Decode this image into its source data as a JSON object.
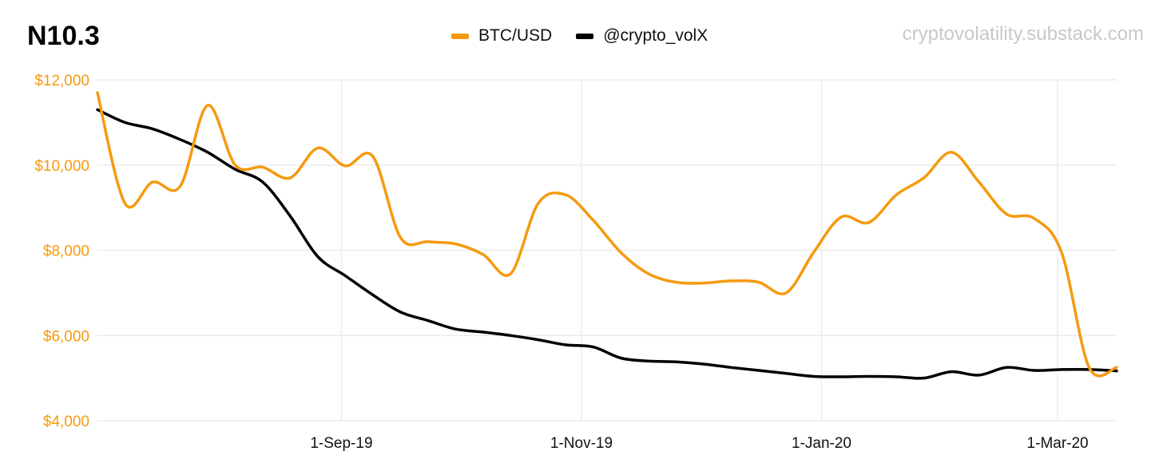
{
  "header": {
    "title": "N10.3",
    "watermark": "cryptovolatility.substack.com"
  },
  "colors": {
    "btc": "#f59a0f",
    "volx": "#000000",
    "grid": "#ececec",
    "ytick": "#f59a0f"
  },
  "chart_data": {
    "type": "line",
    "title": "N10.3",
    "xlabel": "",
    "ylabel": "",
    "ylim": [
      4000,
      12000
    ],
    "xlim": [
      "2019-07-01",
      "2020-03-16"
    ],
    "grid": true,
    "legend_position": "top-center",
    "y_ticks": [
      {
        "value": 4000,
        "label": "$4,000"
      },
      {
        "value": 6000,
        "label": "$6,000"
      },
      {
        "value": 8000,
        "label": "$8,000"
      },
      {
        "value": 10000,
        "label": "$10,000"
      },
      {
        "value": 12000,
        "label": "$12,000"
      }
    ],
    "x_ticks": [
      {
        "value": "2019-09-01",
        "label": "1-Sep-19"
      },
      {
        "value": "2019-11-01",
        "label": "1-Nov-19"
      },
      {
        "value": "2020-01-01",
        "label": "1-Jan-20"
      },
      {
        "value": "2020-03-01",
        "label": "1-Mar-20"
      }
    ],
    "series": [
      {
        "name": "BTC/USD",
        "color": "#f59a0f",
        "x": [
          "2019-07-01",
          "2019-07-08",
          "2019-07-15",
          "2019-07-22",
          "2019-07-29",
          "2019-08-05",
          "2019-08-12",
          "2019-08-19",
          "2019-08-26",
          "2019-09-02",
          "2019-09-09",
          "2019-09-16",
          "2019-09-23",
          "2019-09-30",
          "2019-10-07",
          "2019-10-14",
          "2019-10-21",
          "2019-10-28",
          "2019-11-04",
          "2019-11-11",
          "2019-11-18",
          "2019-11-25",
          "2019-12-02",
          "2019-12-09",
          "2019-12-16",
          "2019-12-23",
          "2019-12-30",
          "2020-01-06",
          "2020-01-13",
          "2020-01-20",
          "2020-01-27",
          "2020-02-03",
          "2020-02-10",
          "2020-02-17",
          "2020-02-24",
          "2020-03-02",
          "2020-03-09",
          "2020-03-16"
        ],
        "values": [
          11700,
          9100,
          9600,
          9500,
          11400,
          10000,
          9950,
          9700,
          10400,
          9980,
          10200,
          8300,
          8200,
          8150,
          7900,
          7450,
          9100,
          9300,
          8700,
          7950,
          7450,
          7250,
          7230,
          7280,
          7250,
          7000,
          7950,
          8780,
          8650,
          9300,
          9700,
          10300,
          9600,
          8850,
          8750,
          7950,
          5250,
          5250
        ]
      },
      {
        "name": "@crypto_volX",
        "color": "#000000",
        "x": [
          "2019-07-01",
          "2019-07-08",
          "2019-07-15",
          "2019-07-22",
          "2019-07-29",
          "2019-08-05",
          "2019-08-12",
          "2019-08-19",
          "2019-08-26",
          "2019-09-02",
          "2019-09-09",
          "2019-09-16",
          "2019-09-23",
          "2019-09-30",
          "2019-10-07",
          "2019-10-14",
          "2019-10-21",
          "2019-10-28",
          "2019-11-04",
          "2019-11-11",
          "2019-11-18",
          "2019-11-25",
          "2019-12-02",
          "2019-12-09",
          "2019-12-16",
          "2019-12-23",
          "2019-12-30",
          "2020-01-06",
          "2020-01-13",
          "2020-01-20",
          "2020-01-27",
          "2020-02-03",
          "2020-02-10",
          "2020-02-17",
          "2020-02-24",
          "2020-03-02",
          "2020-03-09",
          "2020-03-16"
        ],
        "values": [
          11300,
          11000,
          10850,
          10600,
          10300,
          9900,
          9600,
          8800,
          7850,
          7400,
          6950,
          6550,
          6350,
          6150,
          6080,
          6000,
          5900,
          5780,
          5730,
          5470,
          5400,
          5380,
          5330,
          5250,
          5180,
          5110,
          5040,
          5030,
          5040,
          5030,
          5000,
          5150,
          5070,
          5250,
          5180,
          5200,
          5200,
          5170
        ]
      }
    ]
  }
}
